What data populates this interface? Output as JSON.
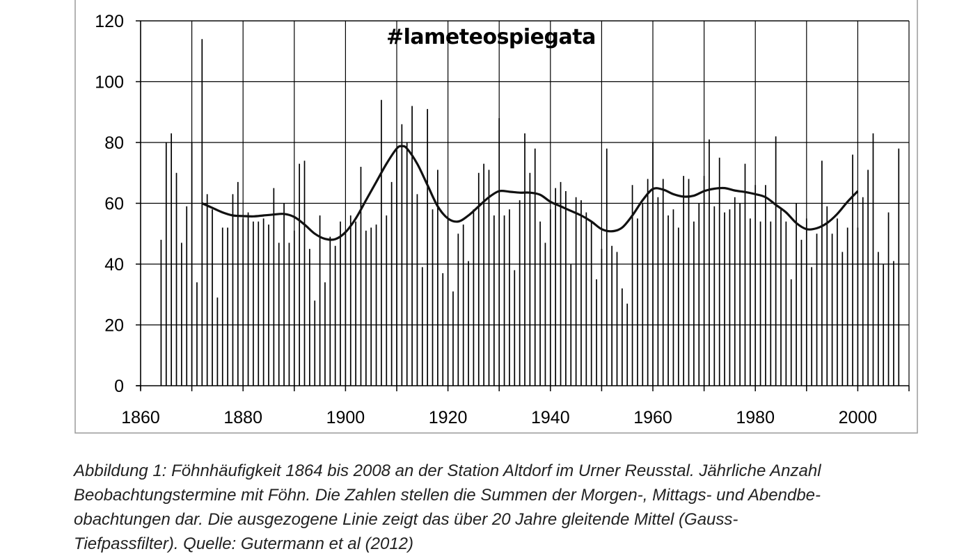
{
  "watermark": "#lameteospiegata",
  "caption": {
    "lines": [
      "Abbildung 1: Föhnhäufigkeit 1864 bis 2008 an der Station Altdorf im Urner Reusstal. Jährliche Anzahl",
      "Beobachtungstermine mit Föhn. Die Zahlen stellen die Summen der Morgen-, Mittags- und Abendbe-",
      "obachtungen dar. Die ausgezogene Linie zeigt das über 20 Jahre gleitende Mittel (Gauss-",
      "Tiefpassfilter). Quelle: Gutermann et al (2012)"
    ]
  },
  "chart_data": {
    "type": "bar",
    "xlim": [
      1860,
      2010
    ],
    "ylim": [
      0,
      120
    ],
    "x_ticks": [
      1860,
      1880,
      1900,
      1920,
      1940,
      1960,
      1980,
      2000
    ],
    "y_ticks": [
      0,
      20,
      40,
      60,
      80,
      100,
      120
    ],
    "grid": true,
    "legend": "none",
    "bar_color": "#000000",
    "series": [
      {
        "type": "bar",
        "x": [
          1864,
          1865,
          1866,
          1867,
          1868,
          1869,
          1870,
          1871,
          1872,
          1873,
          1874,
          1875,
          1876,
          1877,
          1878,
          1879,
          1880,
          1881,
          1882,
          1883,
          1884,
          1885,
          1886,
          1887,
          1888,
          1889,
          1890,
          1891,
          1892,
          1893,
          1894,
          1895,
          1896,
          1897,
          1898,
          1899,
          1900,
          1901,
          1902,
          1903,
          1904,
          1905,
          1906,
          1907,
          1908,
          1909,
          1910,
          1911,
          1912,
          1913,
          1914,
          1915,
          1916,
          1917,
          1918,
          1919,
          1920,
          1921,
          1922,
          1923,
          1924,
          1925,
          1926,
          1927,
          1928,
          1929,
          1930,
          1931,
          1932,
          1933,
          1934,
          1935,
          1936,
          1937,
          1938,
          1939,
          1940,
          1941,
          1942,
          1943,
          1944,
          1945,
          1946,
          1947,
          1948,
          1949,
          1950,
          1951,
          1952,
          1953,
          1954,
          1955,
          1956,
          1957,
          1958,
          1959,
          1960,
          1961,
          1962,
          1963,
          1964,
          1965,
          1966,
          1967,
          1968,
          1969,
          1970,
          1971,
          1972,
          1973,
          1974,
          1975,
          1976,
          1977,
          1978,
          1979,
          1980,
          1981,
          1982,
          1983,
          1984,
          1985,
          1986,
          1987,
          1988,
          1989,
          1990,
          1991,
          1992,
          1993,
          1994,
          1995,
          1996,
          1997,
          1998,
          1999,
          2000,
          2001,
          2002,
          2003,
          2004,
          2005,
          2006,
          2007,
          2008
        ],
        "values": [
          48,
          80,
          83,
          70,
          47,
          59,
          80,
          34,
          114,
          63,
          58,
          29,
          52,
          52,
          63,
          67,
          55,
          57,
          54,
          54,
          55,
          53,
          65,
          47,
          60,
          47,
          51,
          73,
          74,
          45,
          28,
          56,
          34,
          49,
          46,
          54,
          51,
          56,
          54,
          72,
          51,
          52,
          53,
          94,
          56,
          67,
          78,
          86,
          80,
          92,
          63,
          39,
          91,
          58,
          71,
          37,
          55,
          31,
          50,
          53,
          41,
          58,
          70,
          73,
          71,
          56,
          88,
          56,
          58,
          38,
          61,
          83,
          70,
          78,
          54,
          47,
          58,
          65,
          67,
          64,
          40,
          62,
          61,
          57,
          54,
          35,
          45,
          78,
          46,
          44,
          32,
          27,
          66,
          55,
          60,
          68,
          80,
          62,
          68,
          56,
          58,
          52,
          69,
          68,
          54,
          60,
          69,
          81,
          59,
          75,
          57,
          58,
          62,
          60,
          73,
          55,
          66,
          54,
          66,
          54,
          82,
          58,
          54,
          35,
          60,
          48,
          55,
          39,
          50,
          74,
          59,
          50,
          55,
          44,
          52,
          76,
          52,
          62,
          71,
          83,
          44,
          40,
          57,
          41,
          78
        ]
      },
      {
        "type": "line",
        "name": "",
        "x": [
          1872,
          1874,
          1876,
          1878,
          1880,
          1882,
          1884,
          1886,
          1888,
          1890,
          1892,
          1894,
          1896,
          1898,
          1900,
          1902,
          1904,
          1906,
          1908,
          1910,
          1911,
          1912,
          1914,
          1916,
          1918,
          1920,
          1922,
          1924,
          1926,
          1928,
          1930,
          1932,
          1934,
          1936,
          1938,
          1940,
          1942,
          1944,
          1946,
          1948,
          1950,
          1952,
          1954,
          1956,
          1958,
          1960,
          1962,
          1964,
          1966,
          1968,
          1970,
          1972,
          1974,
          1976,
          1978,
          1980,
          1982,
          1984,
          1986,
          1988,
          1990,
          1992,
          1994,
          1996,
          1998,
          2000
        ],
        "values": [
          60,
          58.5,
          57,
          56,
          55.8,
          55.7,
          56,
          56.3,
          56.5,
          55.5,
          53,
          50,
          48.3,
          48.2,
          50.5,
          55,
          61,
          67,
          73,
          78,
          78.8,
          78,
          73,
          66,
          59,
          55,
          54,
          56,
          59,
          62,
          64,
          63.8,
          63.5,
          63.5,
          62.8,
          60.5,
          59,
          57.5,
          56,
          54,
          51.5,
          50.8,
          52,
          56,
          61,
          64.7,
          64.5,
          63,
          62.2,
          62.5,
          64,
          64.8,
          65,
          64.2,
          63.7,
          63,
          62,
          59.5,
          57,
          53.5,
          51.5,
          51.8,
          53.5,
          56.5,
          60.5,
          64
        ]
      }
    ]
  }
}
